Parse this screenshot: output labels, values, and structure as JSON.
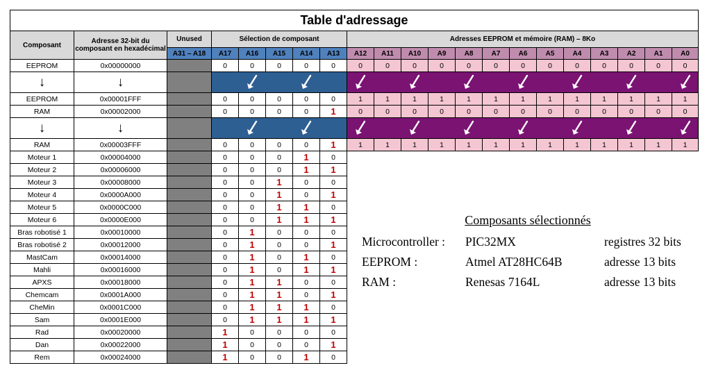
{
  "title": "Table d'adressage",
  "headers": {
    "composant": "Composant",
    "adresse": "Adresse 32-bit du composant en hexadécimal",
    "unused": "Unused",
    "selection": "Sélection de composant",
    "memoire": "Adresses EEPROM et mémoire (RAM) – 8Ko",
    "unused_range": "A31 – A18",
    "sel_bits": [
      "A17",
      "A16",
      "A15",
      "A14",
      "A13"
    ],
    "mem_bits": [
      "A12",
      "A11",
      "A10",
      "A9",
      "A8",
      "A7",
      "A6",
      "A5",
      "A4",
      "A3",
      "A2",
      "A1",
      "A0"
    ]
  },
  "arrow_label": "↓",
  "rows": [
    {
      "type": "data",
      "comp": "EEPROM",
      "addr": "0x00000000",
      "sel": [
        "0",
        "0",
        "0",
        "0",
        "0"
      ],
      "mem": [
        "0",
        "0",
        "0",
        "0",
        "0",
        "0",
        "0",
        "0",
        "0",
        "0",
        "0",
        "0",
        "0"
      ]
    },
    {
      "type": "arrow"
    },
    {
      "type": "data",
      "comp": "EEPROM",
      "addr": "0x00001FFF",
      "sel": [
        "0",
        "0",
        "0",
        "0",
        "0"
      ],
      "mem": [
        "1",
        "1",
        "1",
        "1",
        "1",
        "1",
        "1",
        "1",
        "1",
        "1",
        "1",
        "1",
        "1"
      ]
    },
    {
      "type": "data",
      "comp": "RAM",
      "addr": "0x00002000",
      "sel": [
        "0",
        "0",
        "0",
        "0",
        "1"
      ],
      "mem": [
        "0",
        "0",
        "0",
        "0",
        "0",
        "0",
        "0",
        "0",
        "0",
        "0",
        "0",
        "0",
        "0"
      ]
    },
    {
      "type": "arrow"
    },
    {
      "type": "data",
      "comp": "RAM",
      "addr": "0x00003FFF",
      "sel": [
        "0",
        "0",
        "0",
        "0",
        "1"
      ],
      "mem": [
        "1",
        "1",
        "1",
        "1",
        "1",
        "1",
        "1",
        "1",
        "1",
        "1",
        "1",
        "1",
        "1"
      ]
    },
    {
      "type": "data",
      "comp": "Moteur 1",
      "addr": "0x00004000",
      "sel": [
        "0",
        "0",
        "0",
        "1",
        "0"
      ]
    },
    {
      "type": "data",
      "comp": "Moteur 2",
      "addr": "0x00006000",
      "sel": [
        "0",
        "0",
        "0",
        "1",
        "1"
      ]
    },
    {
      "type": "data",
      "comp": "Moteur 3",
      "addr": "0x00008000",
      "sel": [
        "0",
        "0",
        "1",
        "0",
        "0"
      ]
    },
    {
      "type": "data",
      "comp": "Moteur 4",
      "addr": "0x0000A000",
      "sel": [
        "0",
        "0",
        "1",
        "0",
        "1"
      ]
    },
    {
      "type": "data",
      "comp": "Moteur 5",
      "addr": "0x0000C000",
      "sel": [
        "0",
        "0",
        "1",
        "1",
        "0"
      ]
    },
    {
      "type": "data",
      "comp": "Moteur 6",
      "addr": "0x0000E000",
      "sel": [
        "0",
        "0",
        "1",
        "1",
        "1"
      ]
    },
    {
      "type": "data",
      "comp": "Bras robotisé 1",
      "addr": "0x00010000",
      "sel": [
        "0",
        "1",
        "0",
        "0",
        "0"
      ]
    },
    {
      "type": "data",
      "comp": "Bras robotisé 2",
      "addr": "0x00012000",
      "sel": [
        "0",
        "1",
        "0",
        "0",
        "1"
      ]
    },
    {
      "type": "data",
      "comp": "MastCam",
      "addr": "0x00014000",
      "sel": [
        "0",
        "1",
        "0",
        "1",
        "0"
      ]
    },
    {
      "type": "data",
      "comp": "Mahli",
      "addr": "0x00016000",
      "sel": [
        "0",
        "1",
        "0",
        "1",
        "1"
      ]
    },
    {
      "type": "data",
      "comp": "APXS",
      "addr": "0x00018000",
      "sel": [
        "0",
        "1",
        "1",
        "0",
        "0"
      ]
    },
    {
      "type": "data",
      "comp": "Chemcam",
      "addr": "0x0001A000",
      "sel": [
        "0",
        "1",
        "1",
        "0",
        "1"
      ]
    },
    {
      "type": "data",
      "comp": "CheMin",
      "addr": "0x0001C000",
      "sel": [
        "0",
        "1",
        "1",
        "1",
        "0"
      ]
    },
    {
      "type": "data",
      "comp": "Sam",
      "addr": "0x0001E000",
      "sel": [
        "0",
        "1",
        "1",
        "1",
        "1"
      ]
    },
    {
      "type": "data",
      "comp": "Rad",
      "addr": "0x00020000",
      "sel": [
        "1",
        "0",
        "0",
        "0",
        "0"
      ]
    },
    {
      "type": "data",
      "comp": "Dan",
      "addr": "0x00022000",
      "sel": [
        "1",
        "0",
        "0",
        "0",
        "1"
      ]
    },
    {
      "type": "data",
      "comp": "Rem",
      "addr": "0x00024000",
      "sel": [
        "1",
        "0",
        "0",
        "1",
        "0"
      ]
    }
  ],
  "info": {
    "title": "Composants sélectionnés",
    "items": [
      {
        "label": "Microcontroller :",
        "part": "PIC32MX",
        "desc": "registres 32 bits"
      },
      {
        "label": "EEPROM :",
        "part": "Atmel AT28HC64B",
        "desc": "adresse 13 bits"
      },
      {
        "label": "RAM :",
        "part": "Renesas 7164L",
        "desc": "adresse 13 bits"
      }
    ]
  },
  "colors": {
    "header_gray": "#d9d9d9",
    "unused_gray": "#808080",
    "subheader_blue": "#4f81bd",
    "subheader_pink": "#c08cae",
    "cell_pink": "#f4c6d2",
    "band_blue": "#2e5f93",
    "band_purple": "#7b1373",
    "bit_one_red": "#c00000"
  },
  "icons": {
    "range_arrow": "down-arrow-icon",
    "band_arrow": "diagonal-arrow-icon"
  }
}
